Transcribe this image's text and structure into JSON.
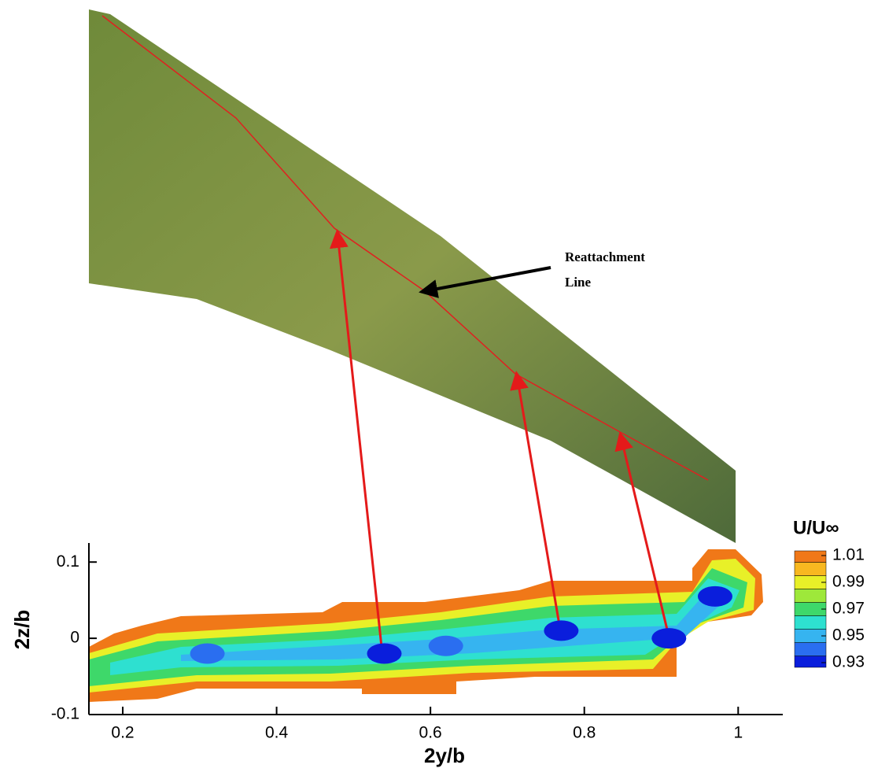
{
  "chart_data": {
    "type": "contour",
    "annotation": [
      "Reattachment",
      "Line"
    ],
    "xlabel": "2y/b",
    "ylabel": "2z/b",
    "xlim": [
      0.156,
      1.058
    ],
    "ylim": [
      -0.1,
      0.125
    ],
    "xticks": [
      0.2,
      0.4,
      0.6,
      0.8,
      1
    ],
    "yticks": [
      -0.1,
      0,
      0.1
    ],
    "cores": {
      "x": [
        0.31,
        0.54,
        0.62,
        0.77,
        0.91,
        0.97
      ],
      "y": [
        -0.02,
        -0.02,
        -0.01,
        0.01,
        0.0,
        0.055
      ],
      "values": [
        0.94,
        0.93,
        0.94,
        0.93,
        0.93,
        0.93
      ]
    },
    "colorbar": {
      "title": "U/U∞",
      "lim": [
        0.9265,
        1.0135
      ],
      "levels": [
        0.9265,
        0.935,
        0.945,
        0.955,
        0.965,
        0.975,
        0.985,
        0.995,
        1.005,
        1.0135
      ],
      "colors": [
        "#0a1edc",
        "#2a6ef0",
        "#36b4f0",
        "#2ee0d0",
        "#3ed86a",
        "#9ee83a",
        "#e8f028",
        "#f8b820",
        "#f07818"
      ],
      "ticks": [
        1.01,
        0.99,
        0.97,
        0.95,
        0.93
      ]
    }
  }
}
